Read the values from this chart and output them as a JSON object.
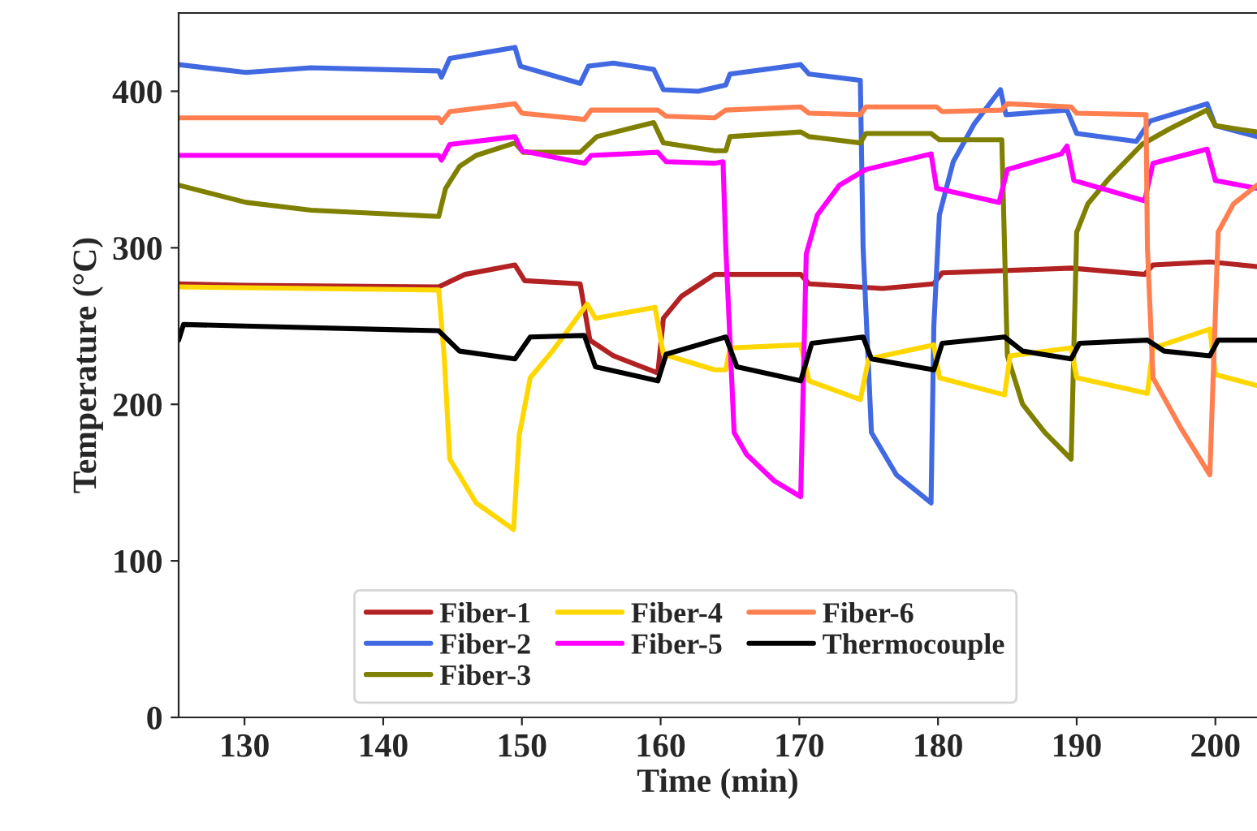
{
  "chart_data": {
    "type": "line",
    "xlabel": "Time (min)",
    "ylabel": "Temperature (°C)",
    "xlim": [
      125.25,
      203
    ],
    "ylim": [
      0,
      450
    ],
    "xticks": [
      130,
      140,
      150,
      160,
      170,
      180,
      190,
      200
    ],
    "yticks": [
      0,
      100,
      200,
      300,
      400
    ],
    "grid": false,
    "legend": "bottom",
    "marker": "none",
    "line_style": "solid",
    "series": [
      {
        "name": "Fiber-1",
        "color": "#b22222",
        "x": [
          125.25,
          130,
          144.0,
          145.9,
          149.5,
          150.2,
          154.2,
          154.9,
          156.6,
          159.8,
          160.2,
          161.5,
          163.9,
          164.7,
          170.1,
          170.7,
          176.0,
          179.7,
          180.3,
          189.6,
          194.9,
          195.5,
          199.6,
          203.0
        ],
        "values": [
          277,
          276,
          275,
          283,
          289,
          279,
          277,
          241,
          231,
          220,
          255,
          269,
          283,
          283,
          283,
          277,
          274,
          277,
          284,
          287,
          283,
          289,
          291,
          288
        ]
      },
      {
        "name": "Fiber-2",
        "color": "#4169e1",
        "x": [
          125.25,
          130.1,
          134.8,
          144.0,
          144.2,
          144.8,
          149.5,
          149.9,
          154.2,
          154.8,
          156.6,
          159.5,
          160.2,
          162.7,
          164.7,
          165.0,
          170.1,
          170.7,
          174.4,
          174.6,
          175.2,
          177.0,
          179.5,
          179.7,
          180.1,
          181.1,
          182.6,
          184.5,
          184.9,
          189.3,
          190.0,
          194.3,
          195.3,
          199.4,
          200.0,
          203.0
        ],
        "values": [
          417,
          412,
          415,
          413,
          409,
          421,
          428,
          416,
          405,
          416,
          418,
          414,
          401,
          400,
          404,
          411,
          417,
          411,
          407,
          300,
          182,
          155,
          137,
          250,
          321,
          355,
          379,
          401,
          385,
          388,
          373,
          368,
          381,
          392,
          378,
          371
        ]
      },
      {
        "name": "Fiber-3",
        "color": "#808000",
        "x": [
          125.25,
          130.1,
          134.8,
          144.0,
          144.5,
          145.5,
          146.7,
          149.5,
          150.1,
          154.2,
          155.4,
          159.5,
          160.2,
          163.9,
          164.7,
          165.0,
          170.1,
          170.7,
          174.4,
          174.8,
          179.5,
          180.1,
          184.6,
          185.0,
          186.1,
          187.7,
          189.6,
          190.0,
          190.8,
          192.4,
          194.7,
          196.7,
          199.4,
          200.0,
          203.0
        ],
        "values": [
          340,
          329,
          324,
          320,
          338,
          352,
          359,
          367,
          361,
          361,
          371,
          380,
          367,
          362,
          362,
          371,
          374,
          371,
          367,
          373,
          373,
          369,
          369,
          231,
          200,
          182,
          165,
          310,
          328,
          345,
          366,
          376,
          388,
          378,
          374
        ]
      },
      {
        "name": "Fiber-4",
        "color": "#ffd700",
        "x": [
          125.25,
          144.0,
          144.4,
          144.8,
          146.7,
          149.4,
          149.8,
          150.6,
          152.2,
          154.7,
          155.3,
          159.6,
          160.2,
          163.9,
          164.7,
          165.0,
          170.1,
          170.7,
          174.4,
          175.0,
          179.7,
          180.1,
          184.8,
          185.2,
          189.6,
          190.0,
          195.1,
          195.5,
          199.6,
          200.0,
          203.0
        ],
        "values": [
          275,
          273,
          230,
          165,
          137,
          120,
          180,
          217,
          234,
          264,
          255,
          262,
          232,
          222,
          222,
          236,
          238,
          215,
          203,
          229,
          238,
          217,
          206,
          231,
          236,
          217,
          207,
          236,
          248,
          219,
          212
        ]
      },
      {
        "name": "Fiber-5",
        "color": "#ff00ff",
        "x": [
          125.25,
          144.0,
          144.2,
          144.8,
          149.5,
          150.0,
          154.5,
          155.0,
          159.8,
          160.4,
          163.9,
          164.5,
          164.7,
          165.3,
          166.2,
          168.2,
          170.1,
          170.5,
          171.3,
          172.9,
          174.8,
          179.5,
          179.9,
          184.4,
          185.0,
          188.9,
          189.3,
          189.8,
          194.9,
          195.5,
          199.4,
          200.0,
          203.0
        ],
        "values": [
          359,
          359,
          356,
          366,
          371,
          362,
          354,
          359,
          361,
          355,
          354,
          355,
          300,
          182,
          168,
          151,
          141,
          296,
          321,
          340,
          350,
          360,
          338,
          329,
          350,
          360,
          365,
          343,
          330,
          354,
          363,
          343,
          338
        ]
      },
      {
        "name": "Fiber-6",
        "color": "#ff7f50",
        "x": [
          125.25,
          144.0,
          144.2,
          144.8,
          149.5,
          150.0,
          154.5,
          155.0,
          159.8,
          160.4,
          163.9,
          164.7,
          170.1,
          170.7,
          174.4,
          174.8,
          179.9,
          180.3,
          184.6,
          185.0,
          189.6,
          190.0,
          195.0,
          195.1,
          195.5,
          197.5,
          199.6,
          200.2,
          201.3,
          203.0
        ],
        "values": [
          383,
          383,
          380,
          387,
          392,
          386,
          382,
          388,
          388,
          384,
          383,
          388,
          390,
          386,
          385,
          390,
          390,
          387,
          388,
          392,
          390,
          386,
          385,
          300,
          217,
          185,
          155,
          310,
          328,
          340
        ]
      },
      {
        "name": "Thermocouple",
        "color": "#000000",
        "x": [
          125.25,
          125.6,
          130,
          144.0,
          145.5,
          149.5,
          150.6,
          154.5,
          155.3,
          159.8,
          160.4,
          163.9,
          164.7,
          165.5,
          170.1,
          170.9,
          174.6,
          175.2,
          179.7,
          180.3,
          184.8,
          186.1,
          189.6,
          190.2,
          195.1,
          196.3,
          199.6,
          200.2,
          203.0
        ],
        "values": [
          241,
          251,
          250,
          247,
          234,
          229,
          243,
          244,
          224,
          215,
          232,
          241,
          243,
          224,
          215,
          239,
          243,
          229,
          222,
          239,
          243,
          234,
          229,
          239,
          241,
          234,
          231,
          241,
          241
        ]
      }
    ]
  }
}
